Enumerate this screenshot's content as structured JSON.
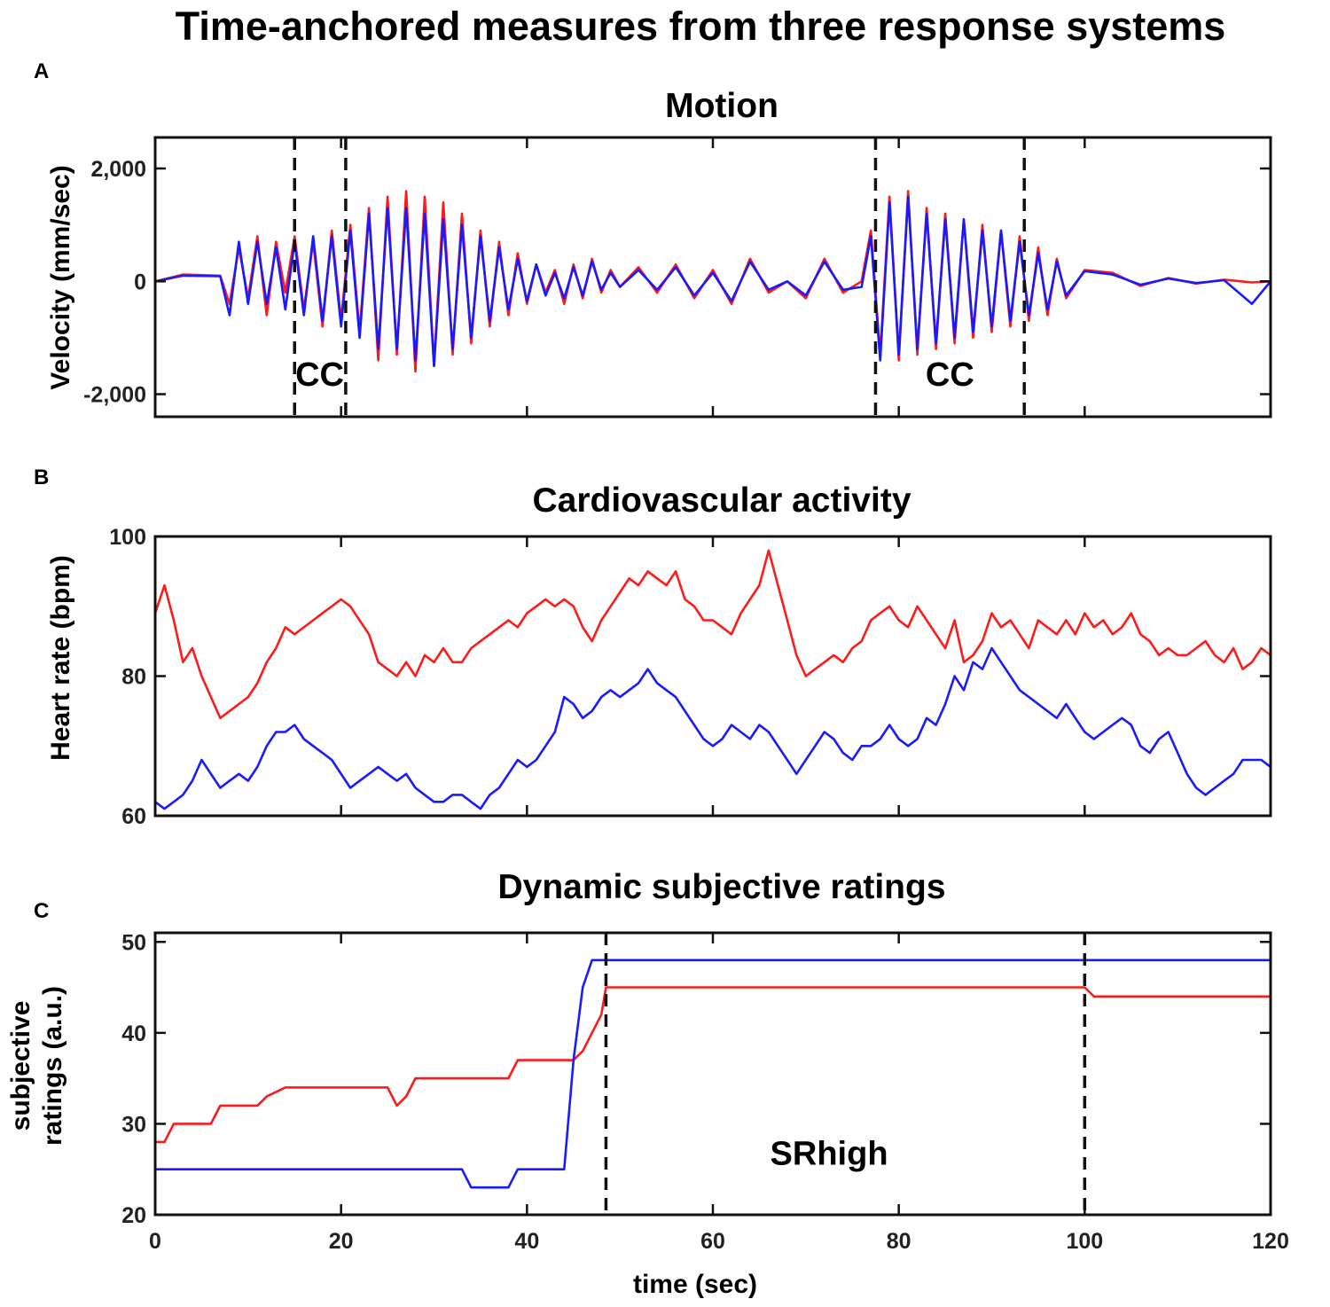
{
  "title": "Time-anchored measures from three response systems",
  "colors": {
    "series1": "#ff1a1a",
    "series2": "#1a1aff",
    "axis": "#111111"
  },
  "chart_data": [
    {
      "panel": "A",
      "type": "line",
      "title": "Motion",
      "xlabel": "",
      "ylabel": "Velocity (mm/sec)",
      "xlim": [
        0,
        120
      ],
      "ylim": [
        -2400,
        2550
      ],
      "xticks": [
        0,
        20,
        40,
        60,
        80,
        100,
        120
      ],
      "yticks": [
        -2000,
        0,
        2000
      ],
      "yticklabels": [
        "-2,000",
        "0",
        "2,000"
      ],
      "show_xticklabels": false,
      "vlines": [
        15,
        20.5,
        77.5,
        93.5
      ],
      "annotations": [
        {
          "text": "CC",
          "x": 17.7,
          "y": -1850
        },
        {
          "text": "CC",
          "x": 85.5,
          "y": -1850
        }
      ],
      "series": [
        {
          "name": "red",
          "x": [
            0,
            3,
            7,
            8,
            9,
            10,
            11,
            12,
            13,
            14,
            15,
            16,
            17,
            18,
            19,
            20,
            21,
            22,
            23,
            24,
            25,
            26,
            27,
            28,
            29,
            30,
            31,
            32,
            33,
            34,
            35,
            36,
            37,
            38,
            39,
            40,
            41,
            42,
            43,
            44,
            45,
            46,
            47,
            48,
            49,
            50,
            52,
            54,
            56,
            58,
            60,
            62,
            64,
            66,
            68,
            70,
            72,
            74,
            76,
            77,
            78,
            79,
            80,
            81,
            82,
            83,
            84,
            85,
            86,
            87,
            88,
            89,
            90,
            91,
            92,
            93,
            94,
            95,
            96,
            97,
            98,
            100,
            103,
            106,
            109,
            112,
            115,
            118,
            120
          ],
          "values": [
            0,
            120,
            100,
            -400,
            600,
            -300,
            800,
            -600,
            700,
            -200,
            800,
            -500,
            700,
            -800,
            900,
            -700,
            1000,
            -900,
            1300,
            -1400,
            1500,
            -1300,
            1600,
            -1600,
            1500,
            -1500,
            1400,
            -1300,
            1200,
            -1100,
            900,
            -800,
            700,
            -600,
            500,
            -400,
            300,
            -200,
            200,
            -400,
            300,
            -300,
            400,
            -200,
            200,
            -100,
            250,
            -200,
            300,
            -300,
            200,
            -400,
            400,
            -200,
            0,
            -300,
            400,
            -200,
            0,
            900,
            -1300,
            1500,
            -1400,
            1600,
            -1300,
            1300,
            -1200,
            1200,
            -1100,
            1100,
            -1000,
            1000,
            -900,
            900,
            -800,
            800,
            -700,
            600,
            -600,
            400,
            -300,
            200,
            150,
            -80,
            60,
            -40,
            30,
            -20,
            0
          ]
        },
        {
          "name": "blue",
          "x": [
            0,
            3,
            7,
            8,
            9,
            10,
            11,
            12,
            13,
            14,
            15,
            16,
            17,
            18,
            19,
            20,
            21,
            22,
            23,
            24,
            25,
            26,
            27,
            28,
            29,
            30,
            31,
            32,
            33,
            34,
            35,
            36,
            37,
            38,
            39,
            40,
            41,
            42,
            43,
            44,
            45,
            46,
            47,
            48,
            49,
            50,
            52,
            54,
            56,
            58,
            60,
            62,
            64,
            66,
            68,
            70,
            72,
            74,
            76,
            77,
            78,
            79,
            80,
            81,
            82,
            83,
            84,
            85,
            86,
            87,
            88,
            89,
            90,
            91,
            92,
            93,
            94,
            95,
            96,
            97,
            98,
            100,
            103,
            106,
            109,
            112,
            115,
            118,
            120
          ],
          "values": [
            0,
            100,
            90,
            -600,
            700,
            -400,
            700,
            -400,
            600,
            -500,
            700,
            -600,
            800,
            -700,
            800,
            -800,
            900,
            -1000,
            1200,
            -1200,
            1300,
            -1200,
            1300,
            -1400,
            1200,
            -1500,
            1100,
            -1200,
            1000,
            -1000,
            800,
            -700,
            600,
            -500,
            400,
            -350,
            300,
            -250,
            150,
            -300,
            250,
            -250,
            350,
            -150,
            150,
            -100,
            200,
            -150,
            250,
            -250,
            150,
            -350,
            350,
            -150,
            0,
            -250,
            350,
            -150,
            -100,
            800,
            -1400,
            1400,
            -1300,
            1500,
            -1200,
            1200,
            -1100,
            1100,
            -1000,
            1100,
            -900,
            900,
            -800,
            900,
            -700,
            700,
            -600,
            500,
            -500,
            350,
            -250,
            180,
            120,
            -60,
            50,
            -30,
            20,
            -400,
            0
          ]
        }
      ]
    },
    {
      "panel": "B",
      "type": "line",
      "title": "Cardiovascular activity",
      "xlabel": "",
      "ylabel": "Heart rate (bpm)",
      "xlim": [
        0,
        120
      ],
      "ylim": [
        60,
        100
      ],
      "xticks": [
        0,
        20,
        40,
        60,
        80,
        100,
        120
      ],
      "yticks": [
        60,
        80,
        100
      ],
      "yticklabels": [
        "60",
        "80",
        "100"
      ],
      "show_xticklabels": false,
      "vlines": [],
      "annotations": [],
      "series": [
        {
          "name": "red",
          "x": [
            0,
            1,
            2,
            3,
            4,
            5,
            6,
            7,
            8,
            9,
            10,
            11,
            12,
            13,
            14,
            15,
            16,
            17,
            18,
            19,
            20,
            21,
            22,
            23,
            24,
            25,
            26,
            27,
            28,
            29,
            30,
            31,
            32,
            33,
            34,
            35,
            36,
            37,
            38,
            39,
            40,
            41,
            42,
            43,
            44,
            45,
            46,
            47,
            48,
            49,
            50,
            51,
            52,
            53,
            54,
            55,
            56,
            57,
            58,
            59,
            60,
            61,
            62,
            63,
            64,
            65,
            66,
            67,
            68,
            69,
            70,
            71,
            72,
            73,
            74,
            75,
            76,
            77,
            78,
            79,
            80,
            81,
            82,
            83,
            84,
            85,
            86,
            87,
            88,
            89,
            90,
            91,
            92,
            93,
            94,
            95,
            96,
            97,
            98,
            99,
            100,
            101,
            102,
            103,
            104,
            105,
            106,
            107,
            108,
            109,
            110,
            111,
            112,
            113,
            114,
            115,
            116,
            117,
            118,
            119,
            120
          ],
          "values": [
            89,
            93,
            88,
            82,
            84,
            80,
            77,
            74,
            75,
            76,
            77,
            79,
            82,
            84,
            87,
            86,
            87,
            88,
            89,
            90,
            91,
            90,
            88,
            86,
            82,
            81,
            80,
            82,
            80,
            83,
            82,
            84,
            82,
            82,
            84,
            85,
            86,
            87,
            88,
            87,
            89,
            90,
            91,
            90,
            91,
            90,
            87,
            85,
            88,
            90,
            92,
            94,
            93,
            95,
            94,
            93,
            95,
            91,
            90,
            88,
            88,
            87,
            86,
            89,
            91,
            93,
            98,
            93,
            88,
            83,
            80,
            81,
            82,
            83,
            82,
            84,
            85,
            88,
            89,
            90,
            88,
            87,
            90,
            88,
            86,
            84,
            88,
            82,
            83,
            85,
            89,
            87,
            88,
            86,
            84,
            88,
            87,
            86,
            88,
            86,
            89,
            87,
            88,
            86,
            87,
            89,
            86,
            85,
            83,
            84,
            83,
            83,
            84,
            85,
            83,
            82,
            84,
            81,
            82,
            84,
            83
          ]
        },
        {
          "name": "blue",
          "x": [
            0,
            1,
            2,
            3,
            4,
            5,
            6,
            7,
            8,
            9,
            10,
            11,
            12,
            13,
            14,
            15,
            16,
            17,
            18,
            19,
            20,
            21,
            22,
            23,
            24,
            25,
            26,
            27,
            28,
            29,
            30,
            31,
            32,
            33,
            34,
            35,
            36,
            37,
            38,
            39,
            40,
            41,
            42,
            43,
            44,
            45,
            46,
            47,
            48,
            49,
            50,
            51,
            52,
            53,
            54,
            55,
            56,
            57,
            58,
            59,
            60,
            61,
            62,
            63,
            64,
            65,
            66,
            67,
            68,
            69,
            70,
            71,
            72,
            73,
            74,
            75,
            76,
            77,
            78,
            79,
            80,
            81,
            82,
            83,
            84,
            85,
            86,
            87,
            88,
            89,
            90,
            91,
            92,
            93,
            94,
            95,
            96,
            97,
            98,
            99,
            100,
            101,
            102,
            103,
            104,
            105,
            106,
            107,
            108,
            109,
            110,
            111,
            112,
            113,
            114,
            115,
            116,
            117,
            118,
            119,
            120
          ],
          "values": [
            62,
            61,
            62,
            63,
            65,
            68,
            66,
            64,
            65,
            66,
            65,
            67,
            70,
            72,
            72,
            73,
            71,
            70,
            69,
            68,
            66,
            64,
            65,
            66,
            67,
            66,
            65,
            66,
            64,
            63,
            62,
            62,
            63,
            63,
            62,
            61,
            63,
            64,
            66,
            68,
            67,
            68,
            70,
            72,
            77,
            76,
            74,
            75,
            77,
            78,
            77,
            78,
            79,
            81,
            79,
            78,
            77,
            75,
            73,
            71,
            70,
            71,
            73,
            72,
            71,
            73,
            72,
            70,
            68,
            66,
            68,
            70,
            72,
            71,
            69,
            68,
            70,
            70,
            71,
            73,
            71,
            70,
            71,
            74,
            73,
            76,
            80,
            78,
            82,
            81,
            84,
            82,
            80,
            78,
            77,
            76,
            75,
            74,
            76,
            74,
            72,
            71,
            72,
            73,
            74,
            73,
            70,
            69,
            71,
            72,
            69,
            66,
            64,
            63,
            64,
            65,
            66,
            68,
            68,
            68,
            67
          ]
        }
      ]
    },
    {
      "panel": "C",
      "type": "line",
      "title": "Dynamic subjective ratings",
      "xlabel": "time (sec)",
      "ylabel": "subjective ratings (a.u.)",
      "ylabel_lines": [
        "subjective",
        "ratings (a.u.)"
      ],
      "xlim": [
        0,
        120
      ],
      "ylim": [
        20,
        51
      ],
      "xticks": [
        0,
        20,
        40,
        60,
        80,
        100,
        120
      ],
      "yticks": [
        20,
        30,
        40,
        50
      ],
      "yticklabels": [
        "20",
        "30",
        "40",
        "50"
      ],
      "show_xticklabels": true,
      "vlines": [
        48.5,
        100
      ],
      "annotations": [
        {
          "text": "SRhigh",
          "x": 72.5,
          "y": 25.5
        }
      ],
      "series": [
        {
          "name": "red",
          "x": [
            0,
            1,
            2,
            6,
            7,
            11,
            12,
            14,
            25,
            26,
            27,
            28,
            38,
            39,
            45,
            46,
            47,
            48,
            48.5,
            100,
            101,
            120
          ],
          "values": [
            28,
            28,
            30,
            30,
            32,
            32,
            33,
            34,
            34,
            32,
            33,
            35,
            35,
            37,
            37,
            38,
            40,
            42,
            45,
            45,
            44,
            44
          ]
        },
        {
          "name": "blue",
          "x": [
            0,
            33,
            34,
            38,
            39,
            44,
            45,
            46,
            47,
            120
          ],
          "values": [
            25,
            25,
            23,
            23,
            25,
            25,
            37,
            45,
            48,
            48
          ]
        }
      ]
    }
  ]
}
